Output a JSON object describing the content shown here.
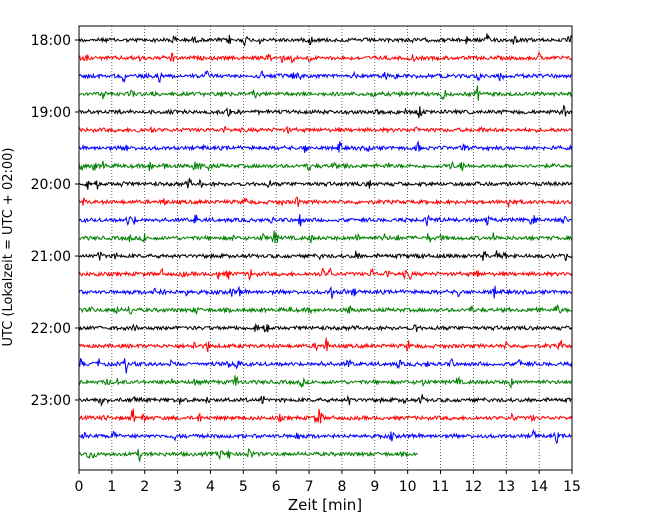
{
  "chart_data": {
    "type": "line",
    "subtype": "helicorder (seismic drum plot)",
    "xlabel": "Zeit  [min]",
    "ylabel": "UTC (Lokalzeit = UTC + 02:00)",
    "xlim": [
      0,
      15
    ],
    "x_ticks": [
      "0",
      "1",
      "2",
      "3",
      "4",
      "5",
      "6",
      "7",
      "8",
      "9",
      "10",
      "11",
      "12",
      "13",
      "14",
      "15"
    ],
    "y_ticks": [
      "18:00",
      "19:00",
      "20:00",
      "21:00",
      "22:00",
      "23:00"
    ],
    "grid": "vertical dotted lines at each minute",
    "colors": [
      "#000000",
      "#ff0000",
      "#0000ff",
      "#008000"
    ],
    "traces": [
      {
        "start": "18:00",
        "end_min": 15,
        "color": "#000000"
      },
      {
        "start": "18:15",
        "end_min": 15,
        "color": "#ff0000"
      },
      {
        "start": "18:30",
        "end_min": 15,
        "color": "#0000ff"
      },
      {
        "start": "18:45",
        "end_min": 15,
        "color": "#008000"
      },
      {
        "start": "19:00",
        "end_min": 15,
        "color": "#000000"
      },
      {
        "start": "19:15",
        "end_min": 15,
        "color": "#ff0000"
      },
      {
        "start": "19:30",
        "end_min": 15,
        "color": "#0000ff"
      },
      {
        "start": "19:45",
        "end_min": 15,
        "color": "#008000"
      },
      {
        "start": "20:00",
        "end_min": 15,
        "color": "#000000"
      },
      {
        "start": "20:15",
        "end_min": 15,
        "color": "#ff0000"
      },
      {
        "start": "20:30",
        "end_min": 15,
        "color": "#0000ff"
      },
      {
        "start": "20:45",
        "end_min": 15,
        "color": "#008000"
      },
      {
        "start": "21:00",
        "end_min": 15,
        "color": "#000000"
      },
      {
        "start": "21:15",
        "end_min": 15,
        "color": "#ff0000"
      },
      {
        "start": "21:30",
        "end_min": 15,
        "color": "#0000ff"
      },
      {
        "start": "21:45",
        "end_min": 15,
        "color": "#008000"
      },
      {
        "start": "22:00",
        "end_min": 15,
        "color": "#000000"
      },
      {
        "start": "22:15",
        "end_min": 15,
        "color": "#ff0000"
      },
      {
        "start": "22:30",
        "end_min": 15,
        "color": "#0000ff"
      },
      {
        "start": "22:45",
        "end_min": 15,
        "color": "#008000"
      },
      {
        "start": "23:00",
        "end_min": 15,
        "color": "#000000"
      },
      {
        "start": "23:15",
        "end_min": 15,
        "color": "#ff0000"
      },
      {
        "start": "23:30",
        "end_min": 15,
        "color": "#0000ff"
      },
      {
        "start": "23:45",
        "end_min": 10.3,
        "color": "#008000"
      }
    ]
  }
}
